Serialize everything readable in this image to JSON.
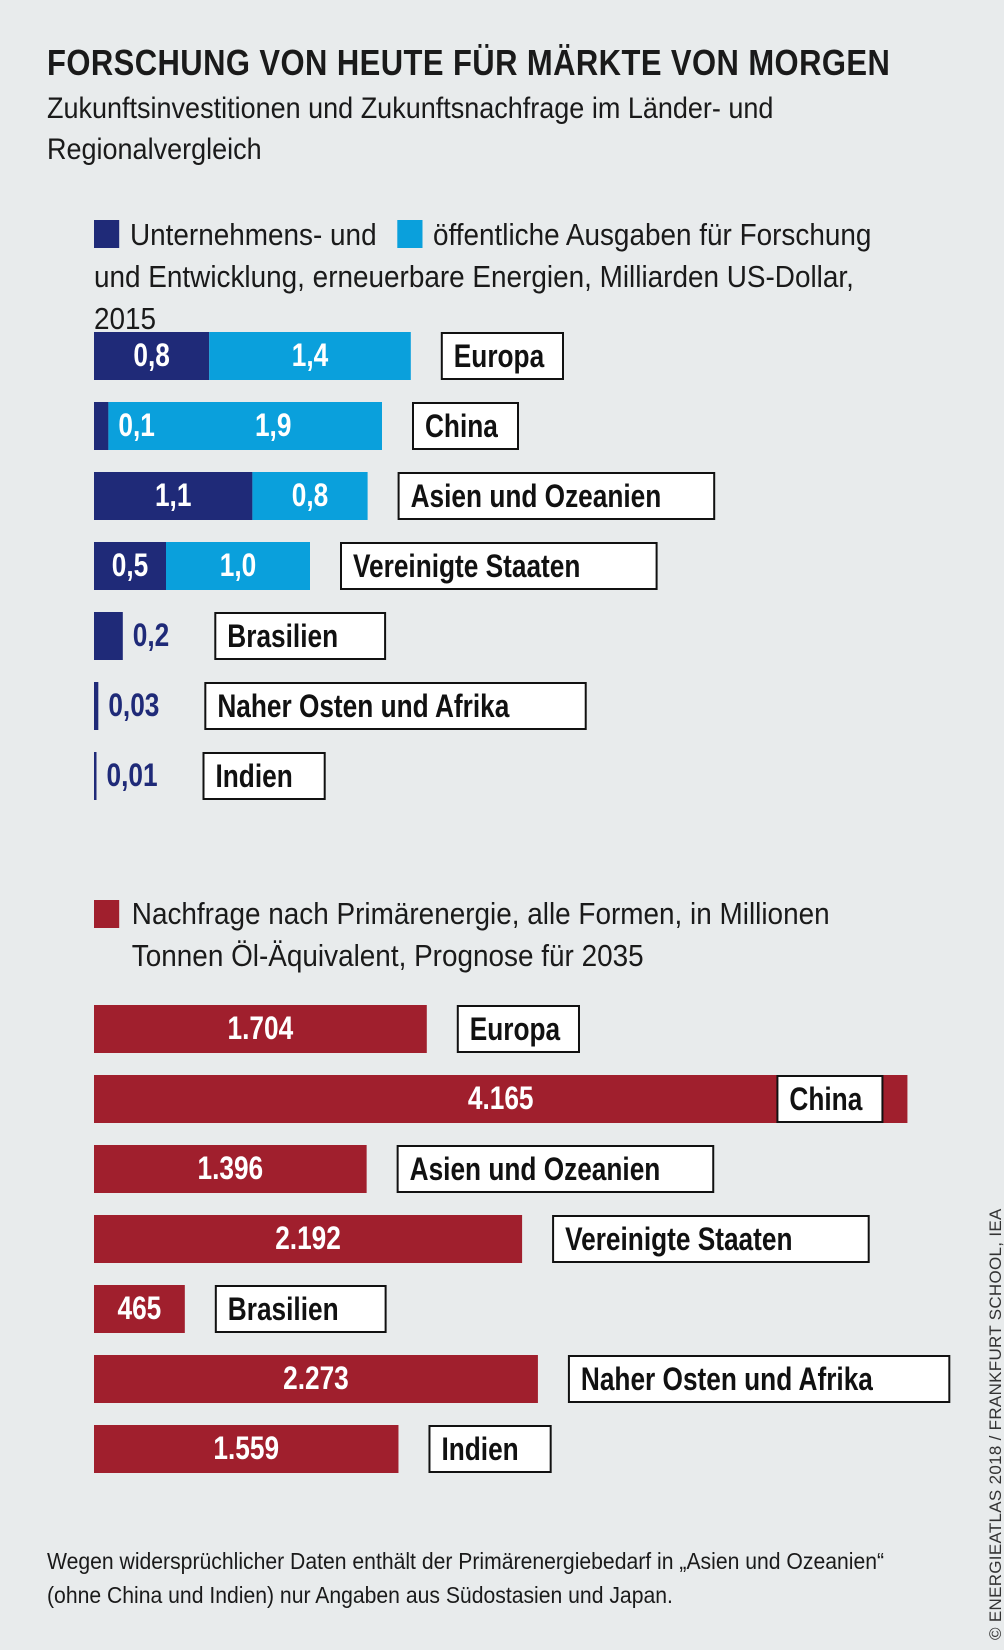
{
  "title": "FORSCHUNG VON HEUTE FÜR MÄRKTE VON MORGEN",
  "subtitle": "Zukunftsinvestitionen und Zukunftsnachfrage im Länder- und Regionalvergleich",
  "legend1": {
    "company_label": "Unternehmens- und",
    "public_label": "öffentliche Ausgaben für Forschung und Entwicklung, erneuerbare Energien, Milliarden US-Dollar, 2015"
  },
  "legend2": {
    "label": "Nachfrage nach Primärenergie, alle Formen, in Millionen Tonnen Öl-Äquivalent, Prognose für 2035"
  },
  "colors": {
    "company": "#1f2a78",
    "public": "#0aa0dc",
    "demand": "#a01f2d",
    "background": "#e8ebec"
  },
  "chart_data": [
    {
      "type": "bar",
      "orientation": "horizontal",
      "stacked": true,
      "categories": [
        "Europa",
        "China",
        "Asien und Ozeanien",
        "Vereinigte Staaten",
        "Brasilien",
        "Naher Osten und Afrika",
        "Indien"
      ],
      "series": [
        {
          "name": "Unternehmens-",
          "values": [
            0.8,
            0.1,
            1.1,
            0.5,
            0.2,
            0.03,
            0.01
          ],
          "labels": [
            "0,8",
            "0,1",
            "1,1",
            "0,5",
            "0,2",
            "0,03",
            "0,01"
          ]
        },
        {
          "name": "öffentliche Ausgaben",
          "values": [
            1.4,
            1.9,
            0.8,
            1.0,
            0,
            0,
            0
          ],
          "labels": [
            "1,4",
            "1,9",
            "0,8",
            "1,0",
            "",
            "",
            ""
          ]
        }
      ]
    },
    {
      "type": "bar",
      "orientation": "horizontal",
      "categories": [
        "Europa",
        "China",
        "Asien und Ozeanien",
        "Vereinigte Staaten",
        "Brasilien",
        "Naher Osten und Afrika",
        "Indien"
      ],
      "series": [
        {
          "name": "Nachfrage nach Primärenergie",
          "values": [
            1704,
            4165,
            1396,
            2192,
            465,
            2273,
            1559
          ],
          "labels": [
            "1.704",
            "4.165",
            "1.396",
            "2.192",
            "465",
            "2.273",
            "1.559"
          ]
        }
      ]
    }
  ],
  "note": "Wegen widersprüchlicher Daten enthält der Primärenergiebedarf in „Asien und Ozeanien“ (ohne China und Indien) nur Angaben aus Südostasien und Japan.",
  "credit": "© ENERGIEATLAS 2018 / FRANKFURT SCHOOL, IEA"
}
